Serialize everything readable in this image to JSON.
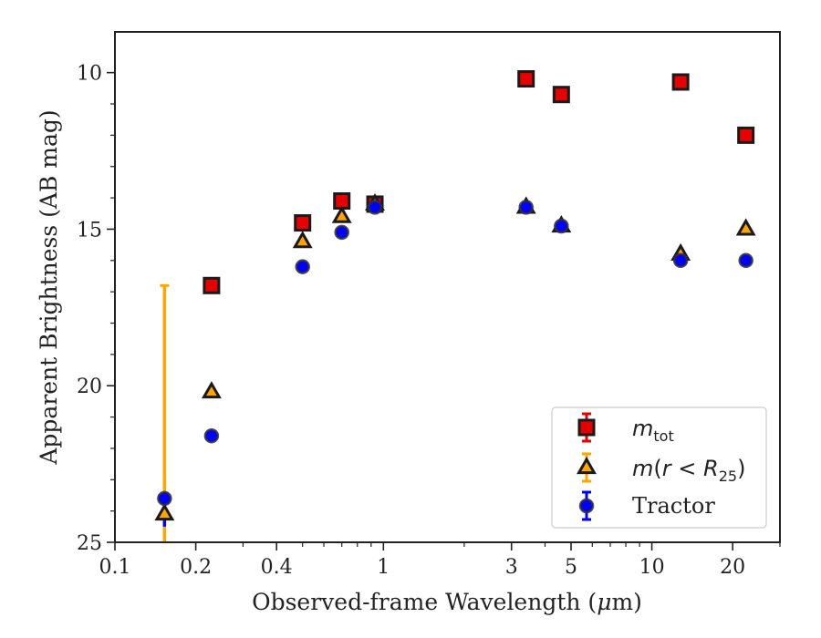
{
  "chart_data": {
    "type": "scatter",
    "xlabel_pre": "Observed-frame Wavelength (",
    "xlabel_mu": "μ",
    "xlabel_post": "m)",
    "ylabel": "Apparent Brightness (AB mag)",
    "x_scale": "log",
    "xlim": [
      0.1,
      30
    ],
    "ylim": [
      25,
      8.7
    ],
    "y_inverted": true,
    "x_ticks": [
      0.1,
      0.2,
      0.4,
      1,
      3,
      5,
      10,
      20
    ],
    "x_tick_labels": [
      "0.1",
      "0.2",
      "0.4",
      "1",
      "3",
      "5",
      "10",
      "20"
    ],
    "y_ticks": [
      10,
      15,
      20,
      25
    ],
    "y_tick_labels": [
      "10",
      "15",
      "20",
      "25"
    ],
    "grid": false,
    "legend_position": "lower-right",
    "legend": {
      "mtot_base": "m",
      "mtot_sub": "tot",
      "mr_math_a": "m",
      "mr_math_b": "(",
      "mr_math_c": "r",
      "mr_math_d": " < ",
      "mr_math_e": "R",
      "mr_sub": "25",
      "mr_close": ")",
      "tractor": "Tractor"
    },
    "series": [
      {
        "key": "mtot",
        "marker": "square",
        "color": "#e60000",
        "edge": "#1a1a1a",
        "x": [
          0.229,
          0.5,
          0.7,
          0.93,
          3.4,
          4.6,
          12.8,
          22.4
        ],
        "y": [
          16.8,
          14.8,
          14.1,
          14.2,
          10.2,
          10.7,
          10.3,
          12.0
        ]
      },
      {
        "key": "mr25",
        "marker": "triangle",
        "color": "#ffa500",
        "edge": "#1a1a1a",
        "x": [
          0.153,
          0.229,
          0.5,
          0.7,
          0.93,
          3.4,
          4.6,
          12.8,
          22.4
        ],
        "y": [
          24.1,
          20.2,
          15.4,
          14.6,
          14.2,
          14.3,
          14.9,
          15.8,
          15.0
        ],
        "yerr_up": [
          7.3,
          0,
          0,
          0,
          0,
          0,
          0,
          0,
          0
        ],
        "yerr_down": [
          1.0,
          0,
          0,
          0,
          0,
          0,
          0,
          0,
          0
        ]
      },
      {
        "key": "tractor",
        "marker": "circle",
        "color": "#0000ff",
        "edge": "#333333",
        "x": [
          0.153,
          0.229,
          0.5,
          0.7,
          0.93,
          3.4,
          4.6,
          12.8,
          22.4
        ],
        "y": [
          23.6,
          21.6,
          16.2,
          15.1,
          14.3,
          14.3,
          14.9,
          16.0,
          16.0
        ],
        "yerr_up": [
          0,
          0,
          0,
          0,
          0,
          0,
          0,
          0,
          0
        ],
        "yerr_down": [
          0.9,
          0,
          0,
          0,
          0,
          0,
          0,
          0,
          0
        ]
      }
    ]
  }
}
